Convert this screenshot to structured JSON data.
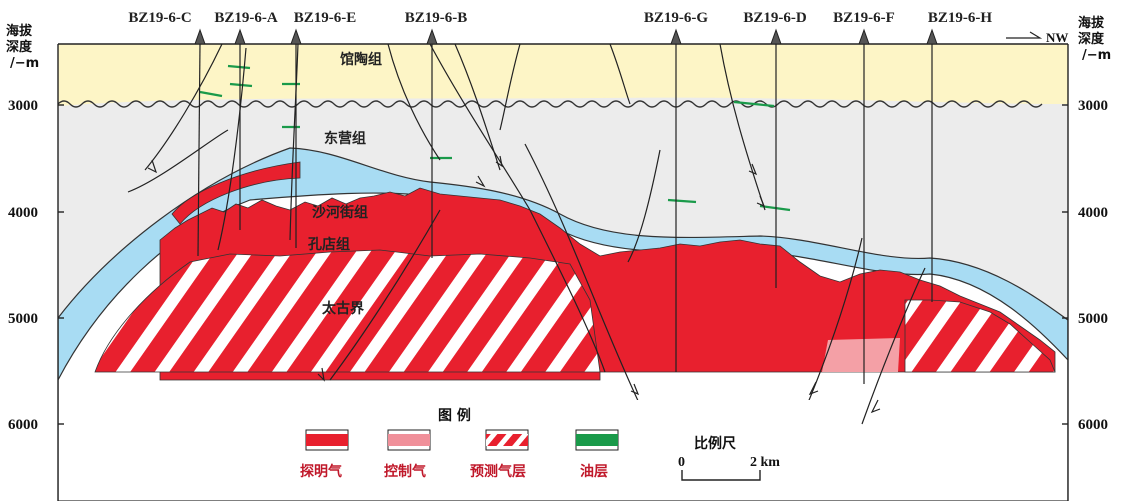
{
  "axis": {
    "left_title": [
      "海拔",
      "深度",
      "/−m"
    ],
    "right_title": [
      "海拔",
      "深度",
      "/−m"
    ],
    "ticks": [
      "3000",
      "4000",
      "5000",
      "6000"
    ],
    "direction": "NW"
  },
  "wells": [
    "BZ19-6-C",
    "BZ19-6-A",
    "BZ19-6-E",
    "BZ19-6-B",
    "BZ19-6-G",
    "BZ19-6-D",
    "BZ19-6-F",
    "BZ19-6-H"
  ],
  "formations": {
    "guantao": "馆陶组",
    "dongying": "东营组",
    "shahejie": "沙河街组",
    "kongdian": "孔店组",
    "taigu": "太古界"
  },
  "legend": {
    "title": "图 例",
    "items": [
      {
        "label": "探明气",
        "color": "#e8202e"
      },
      {
        "label": "控制气",
        "color": "#f0909a"
      },
      {
        "label": "预测气层",
        "color": "#e8202e"
      },
      {
        "label": "油层",
        "color": "#1a9a4a"
      }
    ]
  },
  "scale": {
    "title": "比例尺",
    "start": "0",
    "end": "2 km"
  },
  "colors": {
    "guantao": "#fdf5c6",
    "dongying": "#ececec",
    "shahejie": "#a8dcf3",
    "proven_gas": "#e8202e",
    "controlled_gas": "#f4a0a6",
    "oil": "#1a9a4a"
  }
}
